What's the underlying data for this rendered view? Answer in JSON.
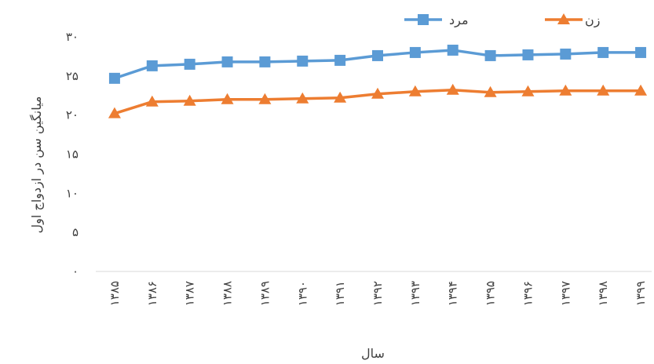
{
  "chart_data": {
    "type": "line",
    "title": "",
    "xlabel": "سال",
    "ylabel": "میانگین سن در ازدواج اول",
    "categories": [
      "۱۳۸۵",
      "۱۳۸۶",
      "۱۳۸۷",
      "۱۳۸۸",
      "۱۳۸۹",
      "۱۳۹۰",
      "۱۳۹۱",
      "۱۳۹۲",
      "۱۳۹۳",
      "۱۳۹۴",
      "۱۳۹۵",
      "۱۳۹۶",
      "۱۳۹۷",
      "۱۳۹۸",
      "۱۳۹۹"
    ],
    "ylim": [
      0,
      30
    ],
    "yticks": [
      "۰",
      "۵",
      "۱۰",
      "۱۵",
      "۲۰",
      "۲۵",
      "۳۰"
    ],
    "grid": false,
    "legend_position": "top-right",
    "series": [
      {
        "name": "مرد",
        "color": "#5B9BD5",
        "marker": "square",
        "values": [
          24.7,
          26.3,
          26.5,
          26.8,
          26.8,
          26.9,
          27.0,
          27.6,
          28.0,
          28.3,
          27.6,
          27.7,
          27.8,
          28.0,
          28.0
        ]
      },
      {
        "name": "زن",
        "color": "#ED7D31",
        "marker": "triangle",
        "values": [
          20.2,
          21.7,
          21.8,
          22.0,
          22.0,
          22.1,
          22.2,
          22.7,
          23.0,
          23.2,
          22.9,
          23.0,
          23.1,
          23.1,
          23.1
        ]
      }
    ]
  }
}
